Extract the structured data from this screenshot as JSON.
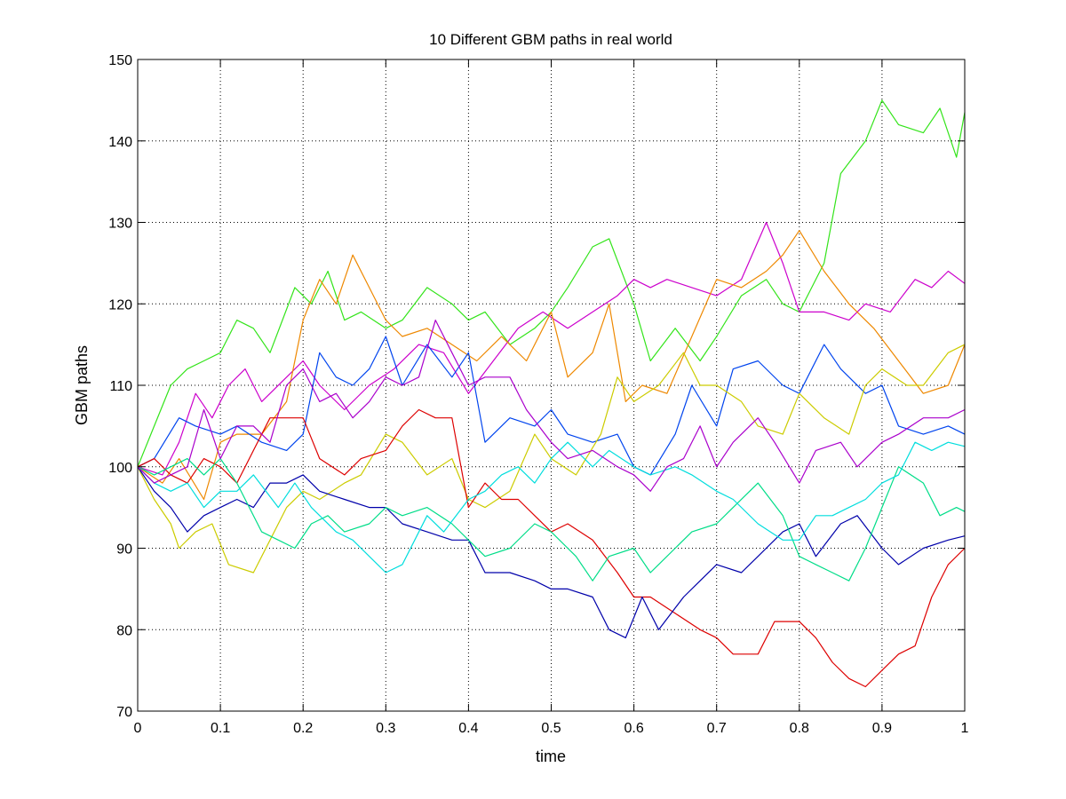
{
  "chart_data": {
    "type": "line",
    "title": "10 Different GBM paths in real world",
    "xlabel": "time",
    "ylabel": "GBM paths",
    "xlim": [
      0,
      1
    ],
    "ylim": [
      70,
      150
    ],
    "xticks": [
      0,
      0.1,
      0.2,
      0.3,
      0.4,
      0.5,
      0.6,
      0.7,
      0.8,
      0.9,
      1
    ],
    "xtick_labels": [
      "0",
      "0.1",
      "0.2",
      "0.3",
      "0.4",
      "0.5",
      "0.6",
      "0.7",
      "0.8",
      "0.9",
      "1"
    ],
    "yticks": [
      70,
      80,
      90,
      100,
      110,
      120,
      130,
      140,
      150
    ],
    "ytick_labels": [
      "70",
      "80",
      "90",
      "100",
      "110",
      "120",
      "130",
      "140",
      "150"
    ],
    "grid": true,
    "legend": false,
    "series": [
      {
        "color": "#33e41a",
        "x": [
          0,
          0.02,
          0.04,
          0.06,
          0.08,
          0.1,
          0.12,
          0.14,
          0.16,
          0.19,
          0.21,
          0.23,
          0.25,
          0.27,
          0.3,
          0.32,
          0.35,
          0.38,
          0.4,
          0.42,
          0.45,
          0.48,
          0.5,
          0.52,
          0.55,
          0.57,
          0.6,
          0.62,
          0.65,
          0.68,
          0.7,
          0.73,
          0.76,
          0.78,
          0.8,
          0.83,
          0.85,
          0.88,
          0.9,
          0.92,
          0.95,
          0.97,
          0.99,
          1
        ],
        "values": [
          100,
          105,
          110,
          112,
          113,
          114,
          118,
          117,
          114,
          122,
          120,
          124,
          118,
          119,
          117,
          118,
          122,
          120,
          118,
          119,
          115,
          117,
          119,
          122,
          127,
          128,
          120,
          113,
          117,
          113,
          116,
          121,
          123,
          120,
          119,
          125,
          136,
          140,
          145,
          142,
          141,
          144,
          138,
          143.5
        ]
      },
      {
        "color": "#cc00cc",
        "x": [
          0,
          0.03,
          0.05,
          0.07,
          0.09,
          0.11,
          0.13,
          0.15,
          0.18,
          0.2,
          0.22,
          0.25,
          0.28,
          0.31,
          0.34,
          0.37,
          0.4,
          0.43,
          0.46,
          0.49,
          0.52,
          0.55,
          0.58,
          0.6,
          0.62,
          0.64,
          0.67,
          0.7,
          0.73,
          0.76,
          0.78,
          0.8,
          0.83,
          0.86,
          0.88,
          0.91,
          0.94,
          0.96,
          0.98,
          1
        ],
        "values": [
          100,
          99,
          103,
          109,
          106,
          110,
          112,
          108,
          111,
          113,
          110,
          107,
          110,
          112,
          115,
          114,
          109,
          113,
          117,
          119,
          117,
          119,
          121,
          123,
          122,
          123,
          122,
          121,
          123,
          130,
          125,
          119,
          119,
          118,
          120,
          119,
          123,
          122,
          124,
          122.5
        ]
      },
      {
        "color": "#ee8800",
        "x": [
          0,
          0.03,
          0.05,
          0.08,
          0.1,
          0.12,
          0.15,
          0.18,
          0.2,
          0.22,
          0.24,
          0.26,
          0.28,
          0.3,
          0.32,
          0.35,
          0.38,
          0.41,
          0.44,
          0.47,
          0.5,
          0.52,
          0.55,
          0.57,
          0.59,
          0.61,
          0.64,
          0.67,
          0.7,
          0.73,
          0.76,
          0.78,
          0.8,
          0.83,
          0.86,
          0.89,
          0.92,
          0.95,
          0.98,
          1
        ],
        "values": [
          100,
          98,
          101,
          96,
          103,
          104,
          104,
          108,
          118,
          123,
          120,
          126,
          122,
          118,
          116,
          117,
          115,
          113,
          116,
          113,
          119,
          111,
          114,
          120,
          108,
          110,
          109,
          116,
          123,
          122,
          124,
          126,
          129,
          124,
          120,
          117,
          113,
          109,
          110,
          115
        ]
      },
      {
        "color": "#0044ee",
        "x": [
          0,
          0.02,
          0.05,
          0.07,
          0.1,
          0.12,
          0.15,
          0.18,
          0.2,
          0.22,
          0.24,
          0.26,
          0.28,
          0.3,
          0.32,
          0.35,
          0.38,
          0.4,
          0.42,
          0.45,
          0.48,
          0.5,
          0.52,
          0.55,
          0.58,
          0.6,
          0.62,
          0.65,
          0.67,
          0.7,
          0.72,
          0.75,
          0.78,
          0.8,
          0.83,
          0.85,
          0.88,
          0.9,
          0.92,
          0.95,
          0.98,
          1
        ],
        "values": [
          100,
          101,
          106,
          105,
          104,
          105,
          103,
          102,
          104,
          114,
          111,
          110,
          112,
          116,
          110,
          115,
          111,
          114,
          103,
          106,
          105,
          107,
          104,
          103,
          104,
          100,
          99,
          104,
          110,
          105,
          112,
          113,
          110,
          109,
          115,
          112,
          109,
          110,
          105,
          104,
          105,
          104
        ]
      },
      {
        "color": "#cccc00",
        "x": [
          0,
          0.02,
          0.04,
          0.05,
          0.07,
          0.09,
          0.11,
          0.14,
          0.16,
          0.18,
          0.2,
          0.22,
          0.25,
          0.27,
          0.3,
          0.32,
          0.35,
          0.38,
          0.4,
          0.42,
          0.45,
          0.48,
          0.5,
          0.53,
          0.56,
          0.58,
          0.6,
          0.63,
          0.66,
          0.68,
          0.7,
          0.73,
          0.75,
          0.78,
          0.8,
          0.83,
          0.86,
          0.88,
          0.9,
          0.93,
          0.95,
          0.98,
          1
        ],
        "values": [
          100,
          96,
          93,
          90,
          92,
          93,
          88,
          87,
          91,
          95,
          97,
          96,
          98,
          99,
          104,
          103,
          99,
          101,
          96,
          95,
          97,
          104,
          101,
          99,
          104,
          111,
          108,
          110,
          114,
          110,
          110,
          108,
          105,
          104,
          109,
          106,
          104,
          110,
          112,
          110,
          110,
          114,
          115
        ]
      },
      {
        "color": "#dd0000",
        "x": [
          0,
          0.02,
          0.04,
          0.06,
          0.08,
          0.1,
          0.12,
          0.14,
          0.16,
          0.18,
          0.2,
          0.22,
          0.25,
          0.27,
          0.3,
          0.32,
          0.34,
          0.36,
          0.38,
          0.4,
          0.42,
          0.44,
          0.46,
          0.48,
          0.5,
          0.52,
          0.55,
          0.58,
          0.6,
          0.62,
          0.65,
          0.68,
          0.7,
          0.72,
          0.75,
          0.77,
          0.8,
          0.82,
          0.84,
          0.86,
          0.88,
          0.9,
          0.92,
          0.94,
          0.96,
          0.98,
          1
        ],
        "values": [
          100,
          101,
          99,
          98,
          101,
          100,
          98,
          102,
          106,
          106,
          106,
          101,
          99,
          101,
          102,
          105,
          107,
          106,
          106,
          95,
          98,
          96,
          96,
          94,
          92,
          93,
          91,
          87,
          84,
          84,
          82,
          80,
          79,
          77,
          77,
          81,
          81,
          79,
          76,
          74,
          73,
          75,
          77,
          78,
          84,
          88,
          90
        ]
      },
      {
        "color": "#0000aa",
        "x": [
          0,
          0.02,
          0.04,
          0.06,
          0.08,
          0.1,
          0.12,
          0.14,
          0.16,
          0.18,
          0.2,
          0.22,
          0.25,
          0.28,
          0.3,
          0.32,
          0.35,
          0.38,
          0.4,
          0.42,
          0.45,
          0.48,
          0.5,
          0.52,
          0.55,
          0.57,
          0.59,
          0.61,
          0.63,
          0.66,
          0.68,
          0.7,
          0.73,
          0.75,
          0.78,
          0.8,
          0.82,
          0.85,
          0.87,
          0.9,
          0.92,
          0.95,
          0.98,
          1
        ],
        "values": [
          100,
          97,
          95,
          92,
          94,
          95,
          96,
          95,
          98,
          98,
          99,
          97,
          96,
          95,
          95,
          93,
          92,
          91,
          91,
          87,
          87,
          86,
          85,
          85,
          84,
          80,
          79,
          84,
          80,
          84,
          86,
          88,
          87,
          89,
          92,
          93,
          89,
          93,
          94,
          90,
          88,
          90,
          91,
          91.5
        ]
      },
      {
        "color": "#00dd88",
        "x": [
          0,
          0.02,
          0.04,
          0.06,
          0.08,
          0.1,
          0.12,
          0.15,
          0.17,
          0.19,
          0.21,
          0.23,
          0.25,
          0.28,
          0.3,
          0.32,
          0.35,
          0.38,
          0.4,
          0.42,
          0.45,
          0.48,
          0.5,
          0.53,
          0.55,
          0.57,
          0.6,
          0.62,
          0.65,
          0.67,
          0.7,
          0.72,
          0.75,
          0.78,
          0.8,
          0.82,
          0.84,
          0.86,
          0.88,
          0.9,
          0.92,
          0.95,
          0.97,
          0.99,
          1
        ],
        "values": [
          100,
          99,
          100,
          101,
          99,
          101,
          98,
          92,
          91,
          90,
          93,
          94,
          92,
          93,
          95,
          94,
          95,
          93,
          91,
          89,
          90,
          93,
          92,
          89,
          86,
          89,
          90,
          87,
          90,
          92,
          93,
          95,
          98,
          94,
          89,
          88,
          87,
          86,
          90,
          95,
          100,
          98,
          94,
          95,
          94.5
        ]
      },
      {
        "color": "#00dddd",
        "x": [
          0,
          0.02,
          0.04,
          0.06,
          0.08,
          0.1,
          0.12,
          0.14,
          0.17,
          0.19,
          0.21,
          0.24,
          0.26,
          0.28,
          0.3,
          0.32,
          0.35,
          0.37,
          0.4,
          0.42,
          0.44,
          0.46,
          0.48,
          0.5,
          0.52,
          0.55,
          0.57,
          0.6,
          0.62,
          0.65,
          0.67,
          0.7,
          0.72,
          0.75,
          0.78,
          0.8,
          0.82,
          0.84,
          0.86,
          0.88,
          0.9,
          0.92,
          0.94,
          0.96,
          0.98,
          1
        ],
        "values": [
          100,
          98,
          97,
          98,
          95,
          97,
          97,
          99,
          95,
          98,
          95,
          92,
          91,
          89,
          87,
          88,
          94,
          92,
          96,
          97,
          99,
          100,
          98,
          101,
          103,
          100,
          102,
          100,
          99,
          100,
          99,
          97,
          96,
          93,
          91,
          91,
          94,
          94,
          95,
          96,
          98,
          99,
          103,
          102,
          103,
          102.5
        ]
      },
      {
        "color": "#aa00cc",
        "x": [
          0,
          0.02,
          0.04,
          0.06,
          0.08,
          0.1,
          0.12,
          0.14,
          0.16,
          0.18,
          0.2,
          0.22,
          0.24,
          0.26,
          0.28,
          0.3,
          0.32,
          0.34,
          0.36,
          0.38,
          0.4,
          0.42,
          0.45,
          0.47,
          0.5,
          0.52,
          0.55,
          0.58,
          0.6,
          0.62,
          0.64,
          0.66,
          0.68,
          0.7,
          0.72,
          0.75,
          0.77,
          0.8,
          0.82,
          0.85,
          0.87,
          0.9,
          0.92,
          0.95,
          0.98,
          1
        ],
        "values": [
          100,
          98,
          99,
          100,
          107,
          101,
          105,
          105,
          103,
          110,
          112,
          108,
          109,
          106,
          108,
          111,
          110,
          111,
          118,
          114,
          110,
          111,
          111,
          107,
          103,
          101,
          102,
          100,
          99,
          97,
          100,
          101,
          105,
          100,
          103,
          106,
          103,
          98,
          102,
          103,
          100,
          103,
          104,
          106,
          106,
          107
        ]
      }
    ]
  }
}
